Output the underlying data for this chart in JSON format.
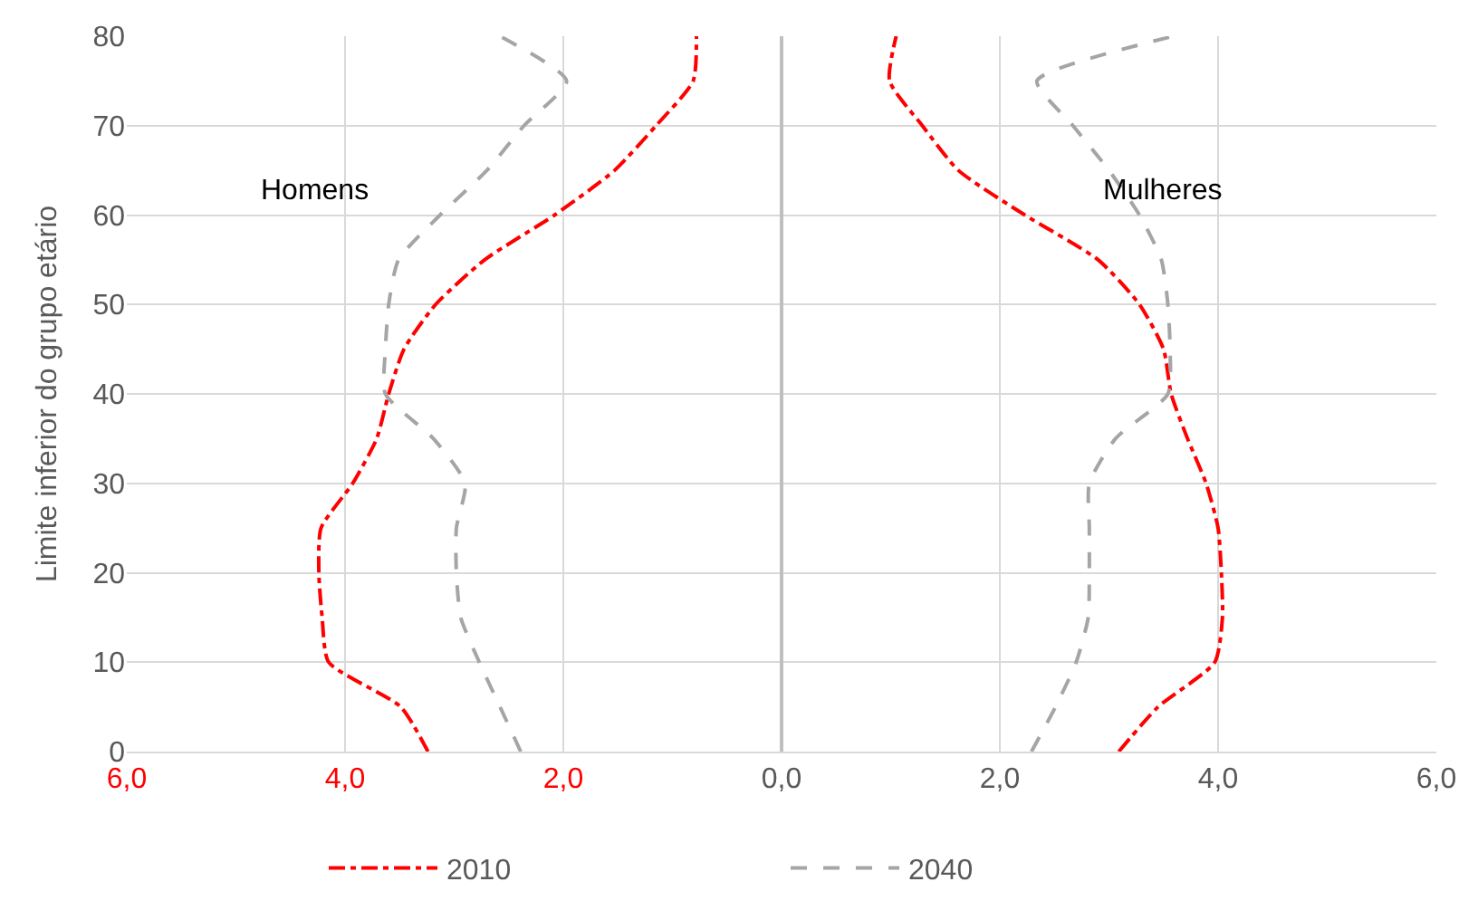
{
  "chart_data": {
    "type": "line",
    "ylabel": "Limite inferior do grupo etário",
    "series": [
      {
        "name": "2010",
        "color": "#ff0000",
        "line_style": "dashdot",
        "x": [
          -3.24,
          -3.49,
          -4.15,
          -4.21,
          -4.24,
          -4.22,
          -3.93,
          -3.71,
          -3.6,
          -3.46,
          -3.17,
          -2.72,
          -2.08,
          -1.53,
          -1.15,
          -0.81,
          -0.78,
          null,
          3.09,
          3.45,
          3.97,
          4.04,
          4.03,
          4.0,
          3.89,
          3.72,
          3.57,
          3.5,
          3.28,
          2.9,
          2.23,
          1.62,
          1.29,
          0.99,
          1.05
        ],
        "values": [
          0,
          5,
          10,
          15,
          20,
          25,
          30,
          35,
          40,
          45,
          50,
          55,
          60,
          65,
          70,
          75,
          80,
          null,
          0,
          5,
          10,
          15,
          20,
          25,
          30,
          35,
          40,
          45,
          50,
          55,
          60,
          65,
          70,
          75,
          80
        ]
      },
      {
        "name": "2040",
        "color": "#a5a5a5",
        "line_style": "dashed",
        "x": [
          -2.39,
          -2.58,
          -2.77,
          -2.94,
          -2.98,
          -2.98,
          -2.9,
          -3.19,
          -3.63,
          -3.63,
          -3.6,
          -3.51,
          -3.13,
          -2.7,
          -2.36,
          -1.97,
          -2.58,
          null,
          2.29,
          2.51,
          2.7,
          2.81,
          2.82,
          2.82,
          2.82,
          3.06,
          3.54,
          3.56,
          3.54,
          3.48,
          3.28,
          3.0,
          2.67,
          2.34,
          3.59
        ],
        "values": [
          0,
          5,
          10,
          15,
          20,
          25,
          30,
          35,
          40,
          45,
          50,
          55,
          60,
          65,
          70,
          75,
          80,
          null,
          0,
          5,
          10,
          15,
          20,
          25,
          30,
          35,
          40,
          45,
          50,
          55,
          60,
          65,
          70,
          75,
          80
        ]
      }
    ],
    "annotations": [
      "Homens",
      "Mulheres"
    ],
    "xlim": [
      -6,
      6
    ],
    "xticks": [
      {
        "value": -6,
        "label": "6,0"
      },
      {
        "value": -4,
        "label": "4,0"
      },
      {
        "value": -2,
        "label": "2,0"
      },
      {
        "value": 0,
        "label": "0,0"
      },
      {
        "value": 2,
        "label": "2,0"
      },
      {
        "value": 4,
        "label": "4,0"
      },
      {
        "value": 6,
        "label": "6,0"
      }
    ],
    "ylim": [
      0,
      80
    ],
    "yticks": [
      0,
      10,
      20,
      30,
      40,
      50,
      60,
      70,
      80
    ],
    "grid": true,
    "legend": "bottom",
    "marker": "none"
  }
}
